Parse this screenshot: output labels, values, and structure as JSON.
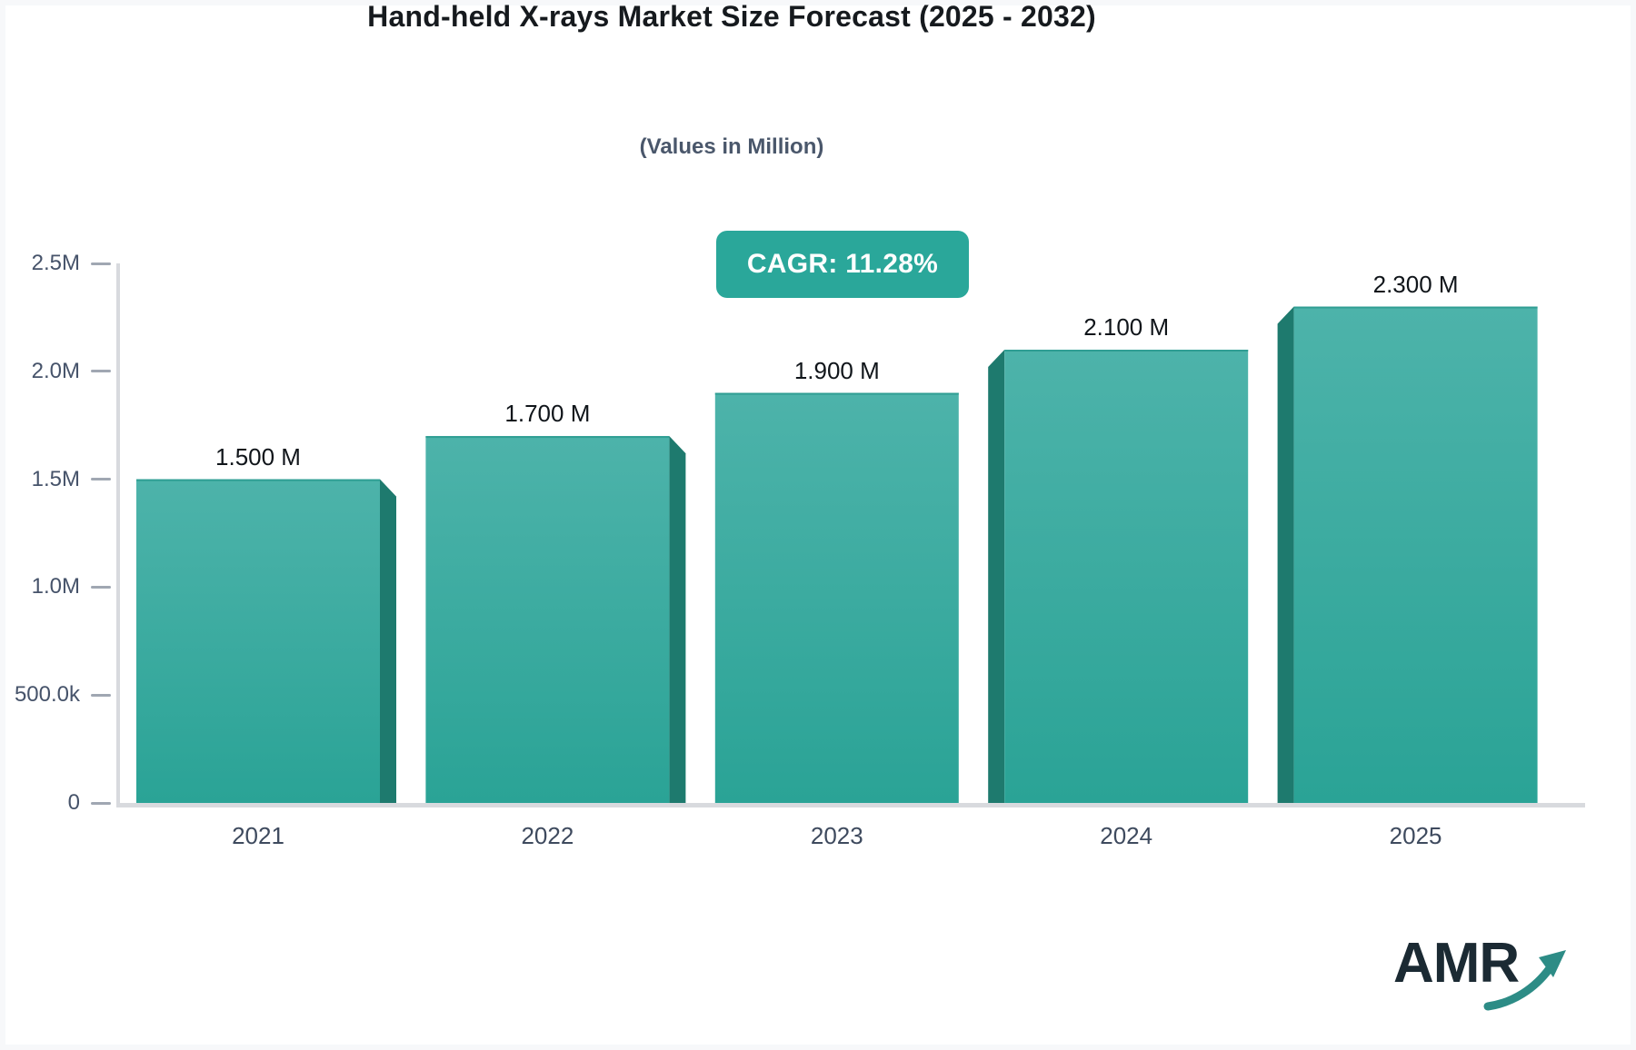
{
  "title": "Hand-held X-rays Market Size Forecast (2025 - 2032)",
  "subtitle": "(Values in Million)",
  "badge": {
    "label": "CAGR: 11.28%",
    "bg_color": "#2aa79a",
    "text_color": "#ffffff"
  },
  "chart_data": {
    "type": "bar",
    "categories": [
      "2021",
      "2022",
      "2023",
      "2024",
      "2025"
    ],
    "values": [
      1500000,
      1700000,
      1900000,
      2100000,
      2300000
    ],
    "value_labels": [
      "1.500 M",
      "1.700 M",
      "1.900 M",
      "2.100 M",
      "2.300 M"
    ],
    "title": "Hand-held X-rays Market Size Forecast (2025 - 2032)",
    "subtitle": "(Values in Million)",
    "xlabel": "",
    "ylabel": "",
    "ylim": [
      0,
      2500000
    ],
    "y_tick_labels": [
      "0",
      "500.0k",
      "1.0M",
      "1.5M",
      "2.0M",
      "2.5M"
    ],
    "y_tick_values": [
      0,
      500000,
      1000000,
      1500000,
      2000000,
      2500000
    ],
    "grid": false,
    "legend": false,
    "style": "3d-perspective-bars",
    "bar_color_top": "#4db3aa",
    "bar_color_bottom": "#2aa396",
    "bar_top_edge_color": "#2f9e93",
    "bar_side_color": "#1e7a6e",
    "axis_line_color": "#d8dade"
  },
  "logo": {
    "text": "AMR",
    "arrow_icon": "trend-up-arrow",
    "text_color": "#1b2a33",
    "arrow_color": "#2d8c86"
  }
}
